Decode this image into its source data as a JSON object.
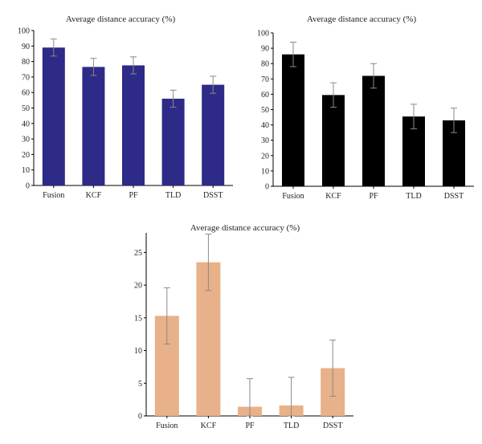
{
  "chart_data": [
    {
      "type": "bar",
      "title": "Average distance accuracy (%)",
      "xlabel": "",
      "ylabel": "",
      "categories": [
        "Fusion",
        "KCF",
        "PF",
        "TLD",
        "DSST"
      ],
      "values": [
        89,
        76.5,
        77.5,
        56,
        65
      ],
      "errors": [
        5.5,
        5.5,
        5.5,
        5.5,
        5.5
      ],
      "ylim": [
        0,
        100
      ],
      "yticks": [
        0,
        10,
        20,
        30,
        40,
        50,
        60,
        70,
        80,
        90,
        100
      ],
      "grid": false,
      "legend": "none",
      "bar_color": "#2e2a87",
      "error_color": "#8a8a8a"
    },
    {
      "type": "bar",
      "title": "Average distance accuracy (%)",
      "xlabel": "",
      "ylabel": "",
      "categories": [
        "Fusion",
        "KCF",
        "PF",
        "TLD",
        "DSST"
      ],
      "values": [
        86,
        59.5,
        72,
        45.5,
        43
      ],
      "errors": [
        8,
        8,
        8,
        8,
        8
      ],
      "ylim": [
        0,
        100
      ],
      "yticks": [
        0,
        10,
        20,
        30,
        40,
        50,
        60,
        70,
        80,
        90,
        100
      ],
      "grid": false,
      "legend": "none",
      "bar_color": "#000000",
      "error_color": "#8a8a8a"
    },
    {
      "type": "bar",
      "title": "Average distance accuracy (%)",
      "xlabel": "",
      "ylabel": "",
      "categories": [
        "Fusion",
        "KCF",
        "PF",
        "TLD",
        "DSST"
      ],
      "values": [
        15.3,
        23.5,
        1.4,
        1.6,
        7.3
      ],
      "errors": [
        4.3,
        4.3,
        4.3,
        4.3,
        4.3
      ],
      "ylim": [
        0,
        28
      ],
      "yticks": [
        0,
        5,
        10,
        15,
        20,
        25
      ],
      "grid": false,
      "legend": "none",
      "bar_color": "#e8b189",
      "error_color": "#8a8a8a"
    }
  ]
}
